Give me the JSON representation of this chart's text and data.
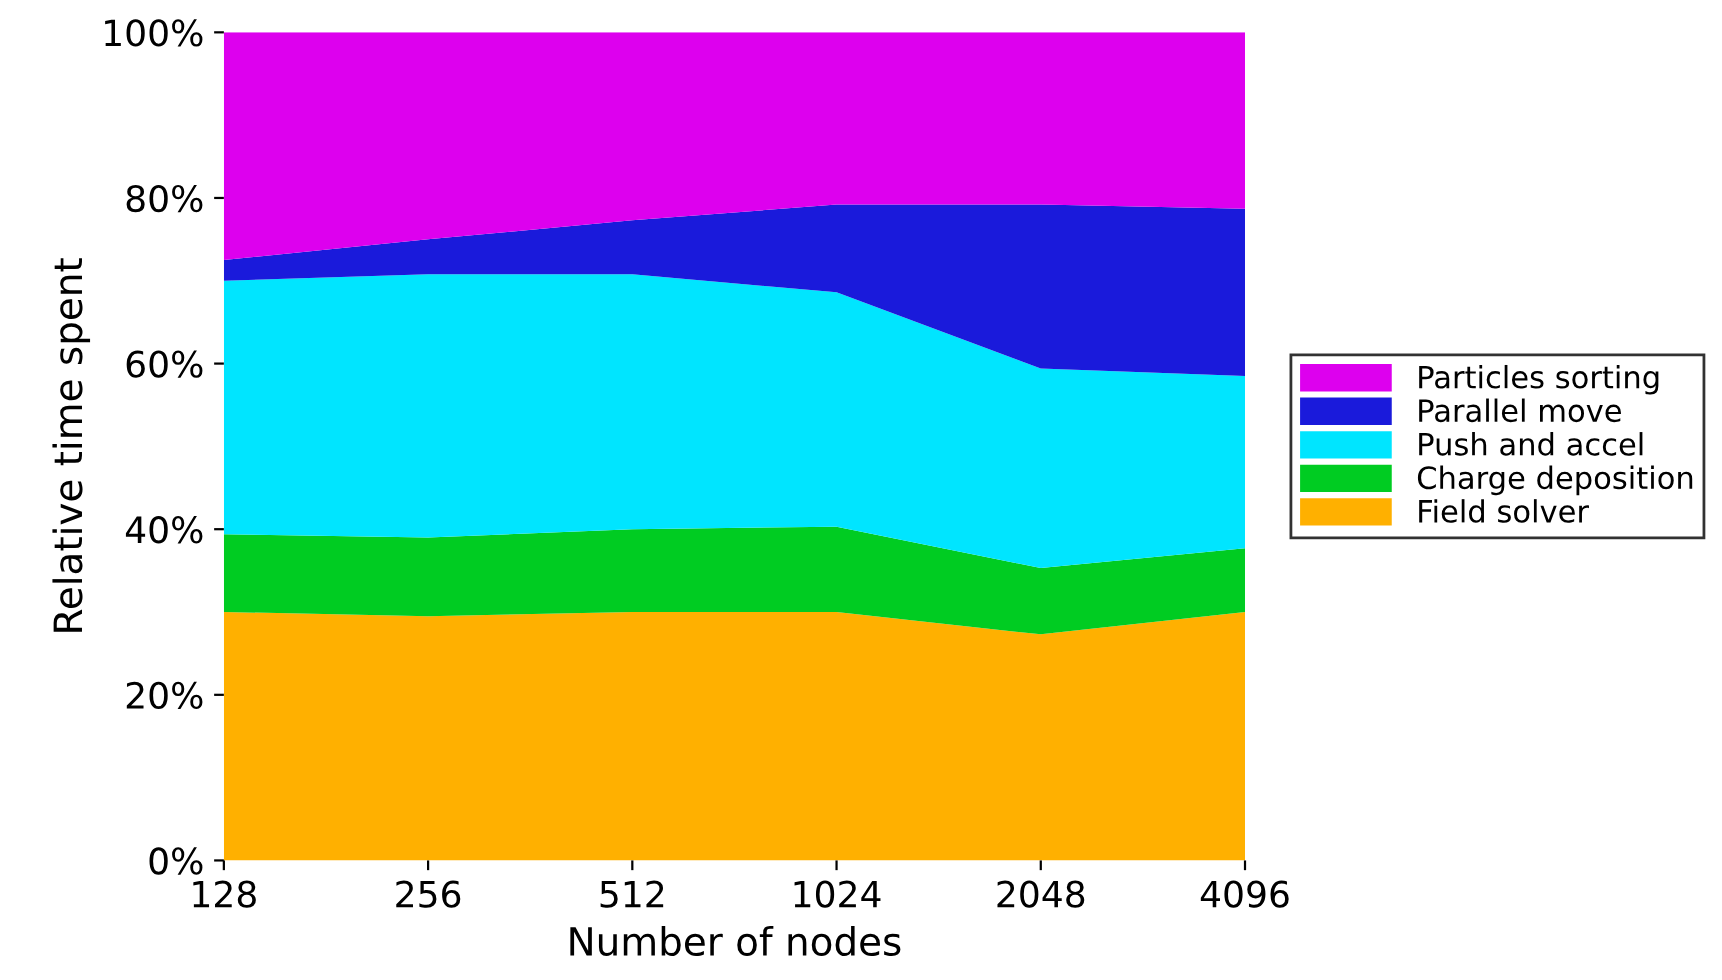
{
  "chart_data": {
    "type": "area",
    "stacked": true,
    "xlabel": "Number of nodes",
    "ylabel": "Relative time spent",
    "categories": [
      "128",
      "256",
      "512",
      "1024",
      "2048",
      "4096"
    ],
    "series": [
      {
        "name": "Field solver",
        "color": "#ffb000",
        "values": [
          30,
          29.5,
          30,
          30,
          27.3,
          30
        ]
      },
      {
        "name": "Charge deposition",
        "color": "#00cc22",
        "values": [
          9.4,
          9.5,
          10,
          10.3,
          8,
          7.7
        ]
      },
      {
        "name": "Push and accel",
        "color": "#00e5ff",
        "values": [
          30.6,
          31.8,
          30.8,
          28.3,
          24.1,
          20.8
        ]
      },
      {
        "name": "Parallel move",
        "color": "#1a1adb",
        "values": [
          2.5,
          4.2,
          6.5,
          10.6,
          19.8,
          20.2
        ]
      },
      {
        "name": "Particles sorting",
        "color": "#dd00ee",
        "values": [
          27.5,
          25,
          22.7,
          20.8,
          20.8,
          21.3
        ]
      }
    ],
    "ylim": [
      0,
      100
    ],
    "yticks": [
      {
        "value": 0,
        "label": "0%"
      },
      {
        "value": 20,
        "label": "20%"
      },
      {
        "value": 40,
        "label": "40%"
      },
      {
        "value": 60,
        "label": "60%"
      },
      {
        "value": 80,
        "label": "80%"
      },
      {
        "value": 100,
        "label": "100%"
      }
    ],
    "legend": "right"
  }
}
